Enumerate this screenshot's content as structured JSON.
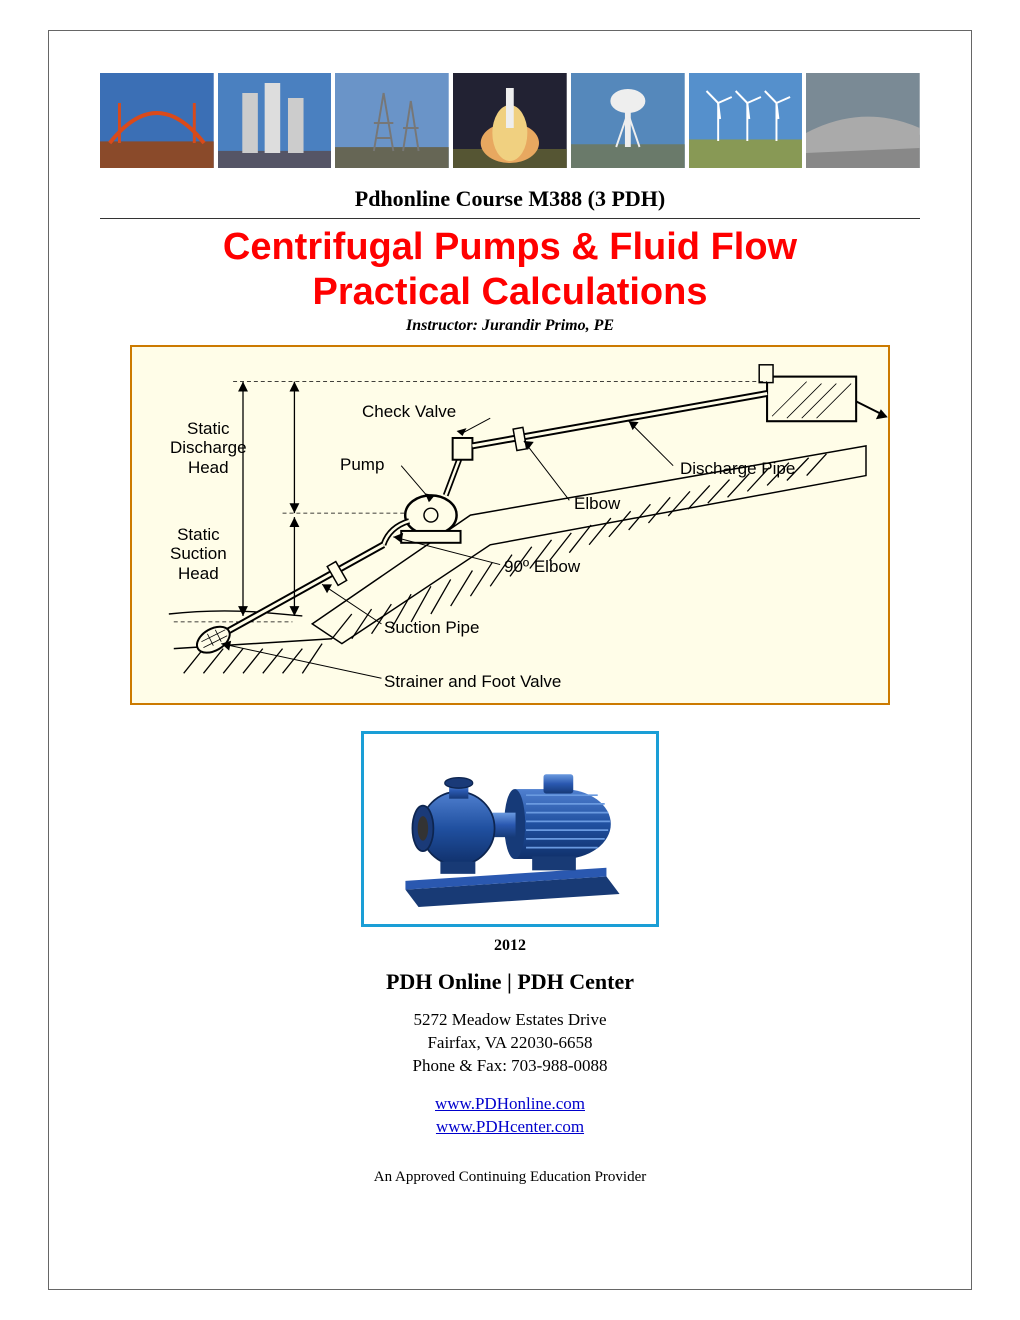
{
  "course_code": "Pdhonline Course M388 (3 PDH)",
  "title_line1": "Centrifugal Pumps & Fluid Flow",
  "title_line2": "Practical Calculations",
  "instructor": "Instructor: Jurandir Primo, PE",
  "year": "2012",
  "org": "PDH Online | PDH Center",
  "address_line1": "5272 Meadow Estates Drive",
  "address_line2": "Fairfax, VA 22030-6658",
  "address_line3": "Phone & Fax: 703-988-0088",
  "link1": "www.PDHonline.com",
  "link2": "www.PDHcenter.com",
  "footer": "An Approved Continuing Education Provider",
  "diagram": {
    "labels": {
      "static_discharge_head": "Static\nDischarge\nHead",
      "static_suction_head": "Static\nSuction\nHead",
      "check_valve": "Check Valve",
      "pump": "Pump",
      "discharge_pipe": "Discharge Pipe",
      "elbow": "Elbow",
      "ninety_elbow": "90º Elbow",
      "suction_pipe": "Suction Pipe",
      "strainer": "Strainer and Foot Valve"
    }
  },
  "colors": {
    "title_red": "#ff0000",
    "diagram_border": "#cc7a00",
    "diagram_bg": "#fffde8",
    "pump_border": "#1a9ed6",
    "link_color": "#0000cc",
    "pump_body": "#2050a0",
    "pump_dark": "#183a75"
  },
  "banner_tiles": [
    {
      "sky": "#3b6fb5",
      "ground": "#8a4a2a",
      "accent": "#d94a1a",
      "type": "bridge"
    },
    {
      "sky": "#4a80c0",
      "ground": "#556",
      "accent": "#ccc",
      "type": "towers"
    },
    {
      "sky": "#6a94c8",
      "ground": "#665",
      "accent": "#777",
      "type": "pylons"
    },
    {
      "sky": "#e8a860",
      "ground": "#553",
      "accent": "#f0d080",
      "type": "launch"
    },
    {
      "sky": "#5588bb",
      "ground": "#6a7a6a",
      "accent": "#eee",
      "type": "watertower"
    },
    {
      "sky": "#5590cc",
      "ground": "#889955",
      "accent": "#fff",
      "type": "windmills"
    },
    {
      "sky": "#7a8a95",
      "ground": "#888",
      "accent": "#aaa",
      "type": "overpass"
    }
  ]
}
